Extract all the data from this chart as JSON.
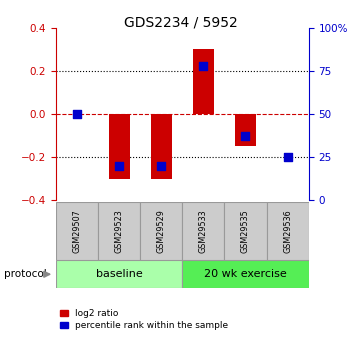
{
  "title": "GDS2234 / 5952",
  "samples": [
    "GSM29507",
    "GSM29523",
    "GSM29529",
    "GSM29533",
    "GSM29535",
    "GSM29536"
  ],
  "log2_ratio": [
    0.0,
    -0.3,
    -0.3,
    0.3,
    -0.15,
    0.0
  ],
  "percentile_rank": [
    50,
    20,
    20,
    78,
    37,
    25
  ],
  "ylim_left": [
    -0.4,
    0.4
  ],
  "ylim_right": [
    0,
    100
  ],
  "yticks_left": [
    -0.4,
    -0.2,
    0.0,
    0.2,
    0.4
  ],
  "yticks_right": [
    0,
    25,
    50,
    75,
    100
  ],
  "ytick_labels_right": [
    "0",
    "25",
    "50",
    "75",
    "100%"
  ],
  "bar_width": 0.5,
  "bar_color": "#cc0000",
  "dot_color": "#0000cc",
  "dot_size": 30,
  "protocol_groups": [
    {
      "label": "baseline",
      "samples": [
        0,
        1,
        2
      ],
      "color": "#aaffaa"
    },
    {
      "label": "20 wk exercise",
      "samples": [
        3,
        4,
        5
      ],
      "color": "#55ee55"
    }
  ],
  "protocol_label": "protocol",
  "legend_red_label": "log2 ratio",
  "legend_blue_label": "percentile rank within the sample",
  "background_color": "#ffffff",
  "axis_left_color": "#cc0000",
  "axis_right_color": "#0000cc",
  "label_box_color": "#cccccc",
  "label_box_edge": "#999999"
}
